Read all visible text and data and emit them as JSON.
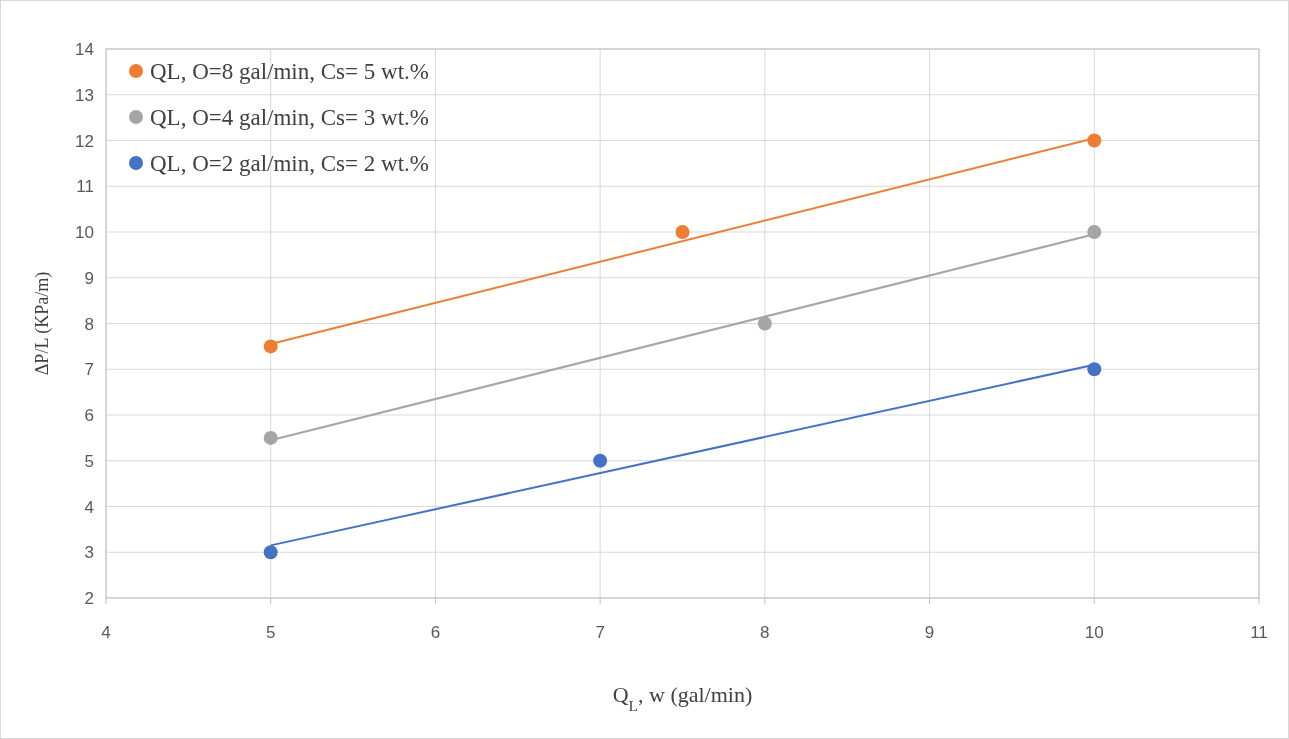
{
  "chart_data": {
    "type": "scatter",
    "xlabel": "Q$_{L}$, w (gal/min)",
    "ylabel": "ΔP/L (KPa/m)",
    "xlim": [
      4,
      11
    ],
    "xticks": [
      4,
      5,
      6,
      7,
      8,
      9,
      10,
      11
    ],
    "ylim": [
      2,
      14
    ],
    "yticks": [
      2,
      3,
      4,
      5,
      6,
      7,
      8,
      9,
      10,
      11,
      12,
      13,
      14
    ],
    "grid": true,
    "legend": "top left",
    "series": [
      {
        "name": "QL, O=8 gal/min, Cs= 5 wt.%",
        "color": "#ed7d31",
        "marker": "circle",
        "x": [
          5,
          7.5,
          10
        ],
        "values": [
          7.5,
          10,
          12
        ]
      },
      {
        "name": "QL, O=4 gal/min, Cs= 3 wt.%",
        "color": "#a5a5a5",
        "marker": "circle",
        "x": [
          5,
          8,
          10
        ],
        "values": [
          5.5,
          8,
          10
        ]
      },
      {
        "name": "QL, O=2 gal/min, Cs= 2 wt.%",
        "color": "#4472c4",
        "marker": "circle",
        "x": [
          5,
          7,
          10
        ],
        "values": [
          3,
          5,
          7
        ]
      },
      {
        "type": "line",
        "color": "#ed7d31",
        "x": [
          5,
          10
        ],
        "values": [
          7.55,
          12.05
        ]
      },
      {
        "type": "line",
        "color": "#a5a5a5",
        "x": [
          5,
          10
        ],
        "values": [
          5.45,
          9.95
        ]
      },
      {
        "type": "line",
        "color": "#4472c4",
        "x": [
          5,
          10
        ],
        "values": [
          3.15,
          7.1
        ]
      }
    ]
  }
}
